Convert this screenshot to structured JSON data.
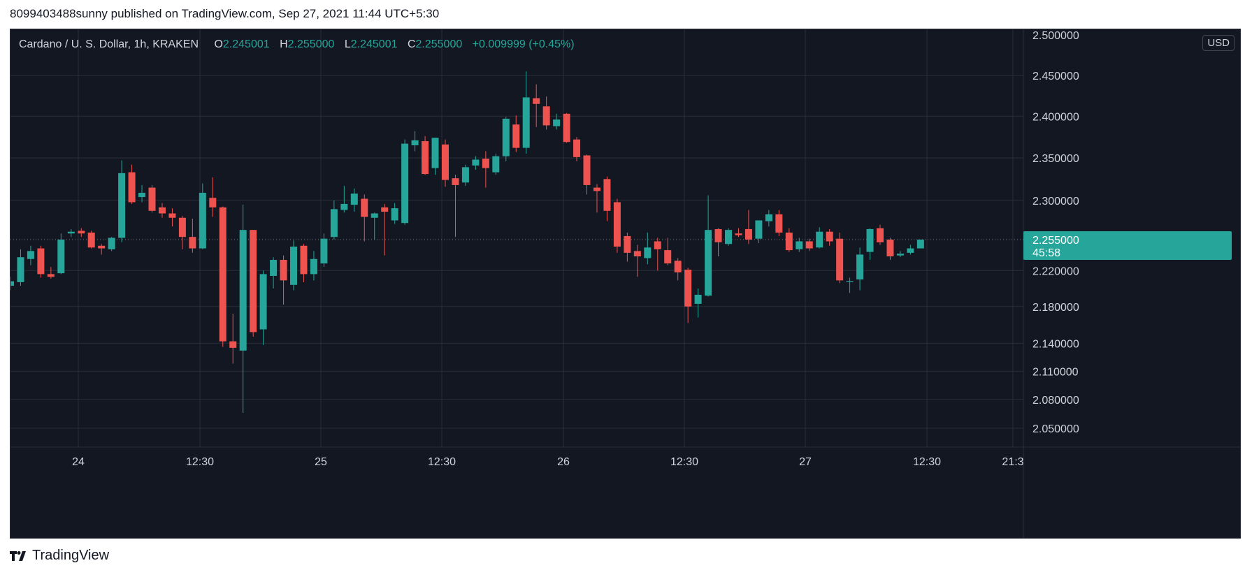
{
  "header": {
    "publisher_line": "8099403488sunny published on TradingView.com, Sep 27, 2021 11:44 UTC+5:30"
  },
  "legend": {
    "symbol": "Cardano / U. S. Dollar, 1h, KRAKEN",
    "o_label": "O",
    "o_value": "2.245001",
    "h_label": "H",
    "h_value": "2.255000",
    "l_label": "L",
    "l_value": "2.245001",
    "c_label": "C",
    "c_value": "2.255000",
    "change": "+0.009999 (+0.45%)"
  },
  "currency_badge": "USD",
  "footer": {
    "brand": "TradingView"
  },
  "colors": {
    "background": "#131722",
    "grid": "#2a2e39",
    "up": "#26a69a",
    "down": "#ef5350",
    "axis_text": "#d1d4dc",
    "price_label_bg": "#26a69a"
  },
  "chart_data": {
    "type": "candlestick",
    "title": "Cardano / U. S. Dollar, 1h, KRAKEN",
    "y_ticks": [
      2.05,
      2.08,
      2.11,
      2.14,
      2.18,
      2.22,
      2.3,
      2.35,
      2.4,
      2.45
    ],
    "y_tick_labels": [
      "2.050000",
      "2.080000",
      "2.110000",
      "2.140000",
      "2.180000",
      "2.220000",
      "2.300000",
      "2.350000",
      "2.400000",
      "2.450000"
    ],
    "y_axis_scale": "log",
    "x_tick_labels": [
      "24",
      "12:30",
      "25",
      "12:30",
      "26",
      "12:30",
      "27",
      "12:30",
      "21:3"
    ],
    "last_price": 2.255,
    "last_price_label": "2.255000",
    "countdown": "45:58",
    "candles": [
      {
        "o": 2.203,
        "h": 2.213,
        "l": 2.198,
        "c": 2.208
      },
      {
        "o": 2.207,
        "h": 2.244,
        "l": 2.203,
        "c": 2.235
      },
      {
        "o": 2.233,
        "h": 2.248,
        "l": 2.226,
        "c": 2.242
      },
      {
        "o": 2.245,
        "h": 2.248,
        "l": 2.212,
        "c": 2.216
      },
      {
        "o": 2.216,
        "h": 2.224,
        "l": 2.211,
        "c": 2.213
      },
      {
        "o": 2.217,
        "h": 2.262,
        "l": 2.216,
        "c": 2.255
      },
      {
        "o": 2.262,
        "h": 2.267,
        "l": 2.258,
        "c": 2.264
      },
      {
        "o": 2.265,
        "h": 2.268,
        "l": 2.258,
        "c": 2.262
      },
      {
        "o": 2.263,
        "h": 2.265,
        "l": 2.245,
        "c": 2.246
      },
      {
        "o": 2.248,
        "h": 2.25,
        "l": 2.238,
        "c": 2.245
      },
      {
        "o": 2.244,
        "h": 2.258,
        "l": 2.242,
        "c": 2.257
      },
      {
        "o": 2.257,
        "h": 2.347,
        "l": 2.252,
        "c": 2.332
      },
      {
        "o": 2.333,
        "h": 2.342,
        "l": 2.296,
        "c": 2.298
      },
      {
        "o": 2.304,
        "h": 2.318,
        "l": 2.298,
        "c": 2.309
      },
      {
        "o": 2.315,
        "h": 2.318,
        "l": 2.286,
        "c": 2.288
      },
      {
        "o": 2.292,
        "h": 2.297,
        "l": 2.28,
        "c": 2.285
      },
      {
        "o": 2.285,
        "h": 2.291,
        "l": 2.27,
        "c": 2.28
      },
      {
        "o": 2.28,
        "h": 2.282,
        "l": 2.244,
        "c": 2.258
      },
      {
        "o": 2.258,
        "h": 2.279,
        "l": 2.24,
        "c": 2.245
      },
      {
        "o": 2.245,
        "h": 2.32,
        "l": 2.244,
        "c": 2.309
      },
      {
        "o": 2.303,
        "h": 2.327,
        "l": 2.281,
        "c": 2.292
      },
      {
        "o": 2.292,
        "h": 2.293,
        "l": 2.136,
        "c": 2.142
      },
      {
        "o": 2.142,
        "h": 2.172,
        "l": 2.118,
        "c": 2.135
      },
      {
        "o": 2.132,
        "h": 2.295,
        "l": 2.066,
        "c": 2.266
      },
      {
        "o": 2.266,
        "h": 2.266,
        "l": 2.147,
        "c": 2.152
      },
      {
        "o": 2.155,
        "h": 2.22,
        "l": 2.138,
        "c": 2.216
      },
      {
        "o": 2.214,
        "h": 2.235,
        "l": 2.2,
        "c": 2.232
      },
      {
        "o": 2.232,
        "h": 2.237,
        "l": 2.182,
        "c": 2.209
      },
      {
        "o": 2.204,
        "h": 2.254,
        "l": 2.198,
        "c": 2.247
      },
      {
        "o": 2.248,
        "h": 2.25,
        "l": 2.207,
        "c": 2.216
      },
      {
        "o": 2.216,
        "h": 2.242,
        "l": 2.209,
        "c": 2.233
      },
      {
        "o": 2.228,
        "h": 2.262,
        "l": 2.224,
        "c": 2.256
      },
      {
        "o": 2.258,
        "h": 2.3,
        "l": 2.255,
        "c": 2.29
      },
      {
        "o": 2.289,
        "h": 2.317,
        "l": 2.286,
        "c": 2.296
      },
      {
        "o": 2.295,
        "h": 2.314,
        "l": 2.287,
        "c": 2.308
      },
      {
        "o": 2.302,
        "h": 2.307,
        "l": 2.253,
        "c": 2.281
      },
      {
        "o": 2.28,
        "h": 2.286,
        "l": 2.255,
        "c": 2.285
      },
      {
        "o": 2.292,
        "h": 2.296,
        "l": 2.237,
        "c": 2.287
      },
      {
        "o": 2.277,
        "h": 2.297,
        "l": 2.273,
        "c": 2.291
      },
      {
        "o": 2.274,
        "h": 2.372,
        "l": 2.272,
        "c": 2.367
      },
      {
        "o": 2.365,
        "h": 2.382,
        "l": 2.358,
        "c": 2.371
      },
      {
        "o": 2.37,
        "h": 2.376,
        "l": 2.33,
        "c": 2.331
      },
      {
        "o": 2.338,
        "h": 2.374,
        "l": 2.33,
        "c": 2.374
      },
      {
        "o": 2.366,
        "h": 2.372,
        "l": 2.316,
        "c": 2.324
      },
      {
        "o": 2.326,
        "h": 2.33,
        "l": 2.258,
        "c": 2.318
      },
      {
        "o": 2.321,
        "h": 2.342,
        "l": 2.317,
        "c": 2.339
      },
      {
        "o": 2.341,
        "h": 2.352,
        "l": 2.336,
        "c": 2.348
      },
      {
        "o": 2.349,
        "h": 2.358,
        "l": 2.315,
        "c": 2.338
      },
      {
        "o": 2.333,
        "h": 2.355,
        "l": 2.33,
        "c": 2.352
      },
      {
        "o": 2.352,
        "h": 2.399,
        "l": 2.346,
        "c": 2.397
      },
      {
        "o": 2.39,
        "h": 2.401,
        "l": 2.357,
        "c": 2.362
      },
      {
        "o": 2.362,
        "h": 2.455,
        "l": 2.355,
        "c": 2.423
      },
      {
        "o": 2.422,
        "h": 2.439,
        "l": 2.387,
        "c": 2.415
      },
      {
        "o": 2.412,
        "h": 2.424,
        "l": 2.384,
        "c": 2.389
      },
      {
        "o": 2.388,
        "h": 2.403,
        "l": 2.384,
        "c": 2.396
      },
      {
        "o": 2.403,
        "h": 2.404,
        "l": 2.368,
        "c": 2.369
      },
      {
        "o": 2.372,
        "h": 2.375,
        "l": 2.346,
        "c": 2.351
      },
      {
        "o": 2.353,
        "h": 2.354,
        "l": 2.307,
        "c": 2.318
      },
      {
        "o": 2.315,
        "h": 2.319,
        "l": 2.286,
        "c": 2.311
      },
      {
        "o": 2.325,
        "h": 2.328,
        "l": 2.276,
        "c": 2.288
      },
      {
        "o": 2.298,
        "h": 2.302,
        "l": 2.24,
        "c": 2.247
      },
      {
        "o": 2.259,
        "h": 2.263,
        "l": 2.23,
        "c": 2.24
      },
      {
        "o": 2.242,
        "h": 2.249,
        "l": 2.213,
        "c": 2.236
      },
      {
        "o": 2.234,
        "h": 2.263,
        "l": 2.227,
        "c": 2.246
      },
      {
        "o": 2.253,
        "h": 2.257,
        "l": 2.22,
        "c": 2.244
      },
      {
        "o": 2.243,
        "h": 2.257,
        "l": 2.226,
        "c": 2.228
      },
      {
        "o": 2.231,
        "h": 2.234,
        "l": 2.209,
        "c": 2.218
      },
      {
        "o": 2.221,
        "h": 2.223,
        "l": 2.162,
        "c": 2.18
      },
      {
        "o": 2.183,
        "h": 2.2,
        "l": 2.168,
        "c": 2.193
      },
      {
        "o": 2.192,
        "h": 2.306,
        "l": 2.191,
        "c": 2.266
      },
      {
        "o": 2.267,
        "h": 2.268,
        "l": 2.236,
        "c": 2.252
      },
      {
        "o": 2.25,
        "h": 2.268,
        "l": 2.248,
        "c": 2.266
      },
      {
        "o": 2.262,
        "h": 2.268,
        "l": 2.258,
        "c": 2.26
      },
      {
        "o": 2.267,
        "h": 2.289,
        "l": 2.25,
        "c": 2.255
      },
      {
        "o": 2.256,
        "h": 2.276,
        "l": 2.251,
        "c": 2.277
      },
      {
        "o": 2.276,
        "h": 2.289,
        "l": 2.27,
        "c": 2.284
      },
      {
        "o": 2.284,
        "h": 2.289,
        "l": 2.259,
        "c": 2.263
      },
      {
        "o": 2.263,
        "h": 2.268,
        "l": 2.241,
        "c": 2.243
      },
      {
        "o": 2.244,
        "h": 2.257,
        "l": 2.241,
        "c": 2.253
      },
      {
        "o": 2.253,
        "h": 2.256,
        "l": 2.242,
        "c": 2.245
      },
      {
        "o": 2.246,
        "h": 2.269,
        "l": 2.245,
        "c": 2.264
      },
      {
        "o": 2.264,
        "h": 2.267,
        "l": 2.248,
        "c": 2.253
      },
      {
        "o": 2.256,
        "h": 2.263,
        "l": 2.206,
        "c": 2.209
      },
      {
        "o": 2.207,
        "h": 2.212,
        "l": 2.195,
        "c": 2.208
      },
      {
        "o": 2.21,
        "h": 2.246,
        "l": 2.198,
        "c": 2.238
      },
      {
        "o": 2.241,
        "h": 2.268,
        "l": 2.232,
        "c": 2.267
      },
      {
        "o": 2.268,
        "h": 2.272,
        "l": 2.249,
        "c": 2.252
      },
      {
        "o": 2.255,
        "h": 2.257,
        "l": 2.232,
        "c": 2.236
      },
      {
        "o": 2.237,
        "h": 2.242,
        "l": 2.235,
        "c": 2.239
      },
      {
        "o": 2.24,
        "h": 2.249,
        "l": 2.238,
        "c": 2.245
      },
      {
        "o": 2.245,
        "h": 2.255,
        "l": 2.245,
        "c": 2.255
      }
    ]
  }
}
